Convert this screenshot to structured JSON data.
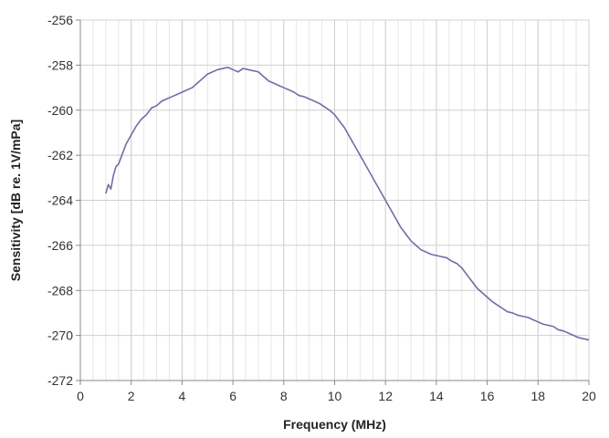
{
  "chart_data": {
    "type": "line",
    "title": "",
    "xlabel": "Frequency (MHz)",
    "ylabel": "Sensitivity [dB re. 1V/mPa]",
    "xlim": [
      0,
      20
    ],
    "ylim": [
      -272,
      -256
    ],
    "x_ticks": [
      0,
      2,
      4,
      6,
      8,
      10,
      12,
      14,
      16,
      18,
      20
    ],
    "y_ticks": [
      -256,
      -258,
      -260,
      -262,
      -264,
      -266,
      -268,
      -270,
      -272
    ],
    "x_minor_step": 0.5,
    "grid": true,
    "legend": "none",
    "line_color": "#7b68a6",
    "series": [
      {
        "x": [
          1.0,
          1.1,
          1.2,
          1.3,
          1.4,
          1.5,
          1.6,
          1.7,
          1.8,
          1.9,
          2.0,
          2.2,
          2.4,
          2.6,
          2.8,
          3.0,
          3.2,
          3.4,
          3.6,
          3.8,
          4.0,
          4.2,
          4.4,
          4.6,
          4.8,
          5.0,
          5.2,
          5.4,
          5.6,
          5.8,
          6.0,
          6.2,
          6.4,
          6.6,
          6.8,
          7.0,
          7.2,
          7.4,
          7.6,
          7.8,
          8.0,
          8.2,
          8.4,
          8.6,
          8.8,
          9.0,
          9.2,
          9.4,
          9.6,
          9.8,
          10.0,
          10.2,
          10.4,
          10.6,
          10.8,
          11.0,
          11.2,
          11.4,
          11.6,
          11.8,
          12.0,
          12.2,
          12.4,
          12.6,
          12.8,
          13.0,
          13.2,
          13.4,
          13.6,
          13.8,
          14.0,
          14.2,
          14.4,
          14.6,
          14.8,
          15.0,
          15.2,
          15.4,
          15.6,
          15.8,
          16.0,
          16.2,
          16.4,
          16.6,
          16.8,
          17.0,
          17.2,
          17.4,
          17.6,
          17.8,
          18.0,
          18.2,
          18.4,
          18.6,
          18.8,
          19.0,
          19.2,
          19.4,
          19.6,
          19.8,
          20.0
        ],
        "y": [
          -263.7,
          -263.3,
          -263.5,
          -262.9,
          -262.5,
          -262.4,
          -262.1,
          -261.8,
          -261.5,
          -261.3,
          -261.1,
          -260.7,
          -260.4,
          -260.2,
          -259.9,
          -259.8,
          -259.6,
          -259.5,
          -259.4,
          -259.3,
          -259.2,
          -259.1,
          -259.0,
          -258.8,
          -258.6,
          -258.4,
          -258.3,
          -258.2,
          -258.15,
          -258.1,
          -258.2,
          -258.3,
          -258.15,
          -258.2,
          -258.25,
          -258.3,
          -258.5,
          -258.7,
          -258.8,
          -258.9,
          -259.0,
          -259.1,
          -259.2,
          -259.35,
          -259.4,
          -259.5,
          -259.6,
          -259.7,
          -259.85,
          -260.0,
          -260.2,
          -260.5,
          -260.8,
          -261.2,
          -261.6,
          -262.0,
          -262.4,
          -262.8,
          -263.2,
          -263.6,
          -264.0,
          -264.4,
          -264.8,
          -265.2,
          -265.5,
          -265.8,
          -266.0,
          -266.2,
          -266.3,
          -266.4,
          -266.45,
          -266.5,
          -266.55,
          -266.7,
          -266.8,
          -267.0,
          -267.3,
          -267.6,
          -267.9,
          -268.1,
          -268.3,
          -268.5,
          -268.65,
          -268.8,
          -268.95,
          -269.0,
          -269.1,
          -269.15,
          -269.2,
          -269.3,
          -269.4,
          -269.5,
          -269.55,
          -269.6,
          -269.75,
          -269.8,
          -269.9,
          -270.0,
          -270.1,
          -270.15,
          -270.2
        ]
      }
    ]
  }
}
